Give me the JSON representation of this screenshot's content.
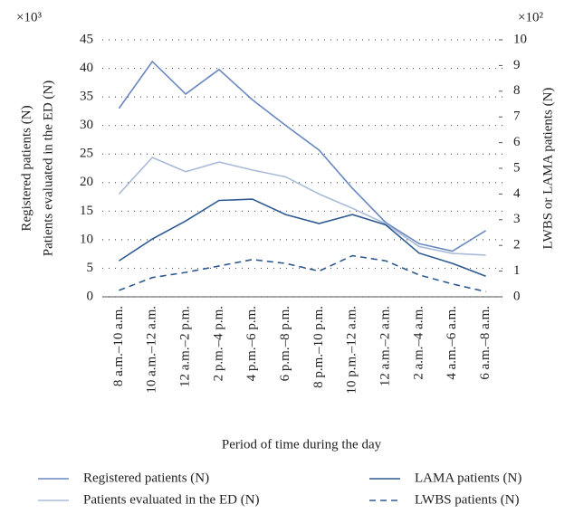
{
  "chart_data": {
    "type": "line",
    "x_label": "Period of time during the day",
    "y_labels": [
      "Registered patients (N)",
      "Patients evaluated in the ED (N)"
    ],
    "y2_label": "LWBS or LAMA patients (N)",
    "y_scale_label": "×10³",
    "y2_scale_label": "×10²",
    "categories": [
      "8 a.m.–10 a.m.",
      "10 a.m.–12 a.m.",
      "12 a.m.–2 p.m.",
      "2 p.m.–4 p.m.",
      "4 p.m.–6 p.m.",
      "6 p.m.–8 p.m.",
      "8 p.m.–10 p.m.",
      "10 p.m.–12 a.m.",
      "12 a.m.–2 a.m.",
      "2 a.m.–4 a.m.",
      "4 a.m.–6 a.m.",
      "6 a.m.–8 a.m."
    ],
    "series": [
      {
        "name": "Registered patients (N)",
        "color": "#6a88c0",
        "values": [
          33,
          41.2,
          35.5,
          39.8,
          34.5,
          30,
          25.7,
          19,
          13,
          9.3,
          8,
          11.6
        ]
      },
      {
        "name": "Patients evaluated in the ED (N)",
        "color": "#aabbd8",
        "values": [
          18,
          24.4,
          21.9,
          23.6,
          22.2,
          21,
          18,
          15.5,
          12.8,
          8.8,
          7.6,
          7.3
        ]
      },
      {
        "name": "LAMA patients (N)",
        "color": "#2e5a90",
        "axis": "y2",
        "values": [
          1.4,
          2.25,
          2.95,
          3.75,
          3.8,
          3.2,
          2.85,
          3.2,
          2.8,
          1.7,
          1.3,
          0.8
        ]
      },
      {
        "name": "LWBS patients (N)",
        "color": "#2e5a90",
        "axis": "y2",
        "dashed": true,
        "values": [
          0.25,
          0.75,
          0.95,
          1.2,
          1.45,
          1.3,
          1.0,
          1.6,
          1.4,
          0.85,
          0.5,
          0.2
        ]
      }
    ],
    "ylim": [
      0,
      45
    ],
    "yticks": [
      0,
      5,
      10,
      15,
      20,
      25,
      30,
      35,
      40,
      45
    ],
    "y2lim": [
      0,
      10
    ],
    "y2ticks": [
      0,
      1,
      2,
      3,
      4,
      5,
      6,
      7,
      8,
      9,
      10
    ],
    "grid": true
  }
}
